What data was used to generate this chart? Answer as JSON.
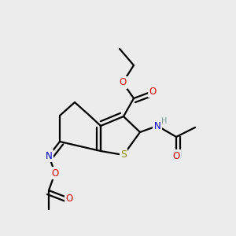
{
  "bg": "#ececec",
  "bc": "#000000",
  "lw": 1.6,
  "dbo": 0.018,
  "colors": {
    "O": "#dd0000",
    "N": "#0000cc",
    "S": "#888800",
    "H": "#779999"
  },
  "fs": 8.0
}
